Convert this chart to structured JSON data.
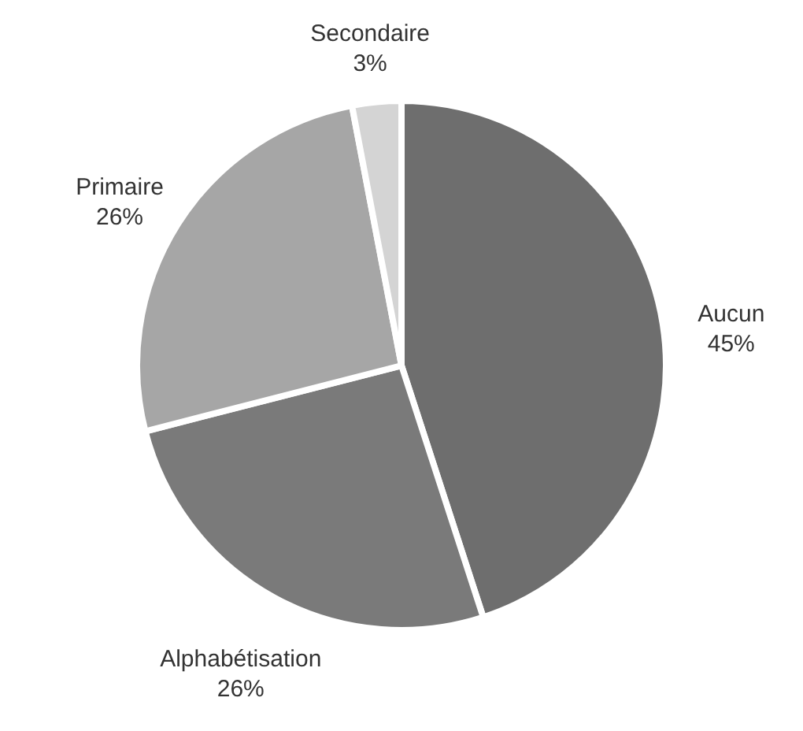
{
  "chart_data": {
    "type": "pie",
    "categories": [
      "Aucun",
      "Alphabétisation",
      "Primaire",
      "Secondaire"
    ],
    "values": [
      45,
      26,
      26,
      3
    ],
    "value_labels": [
      "45%",
      "26%",
      "26%",
      "3%"
    ],
    "colors": [
      "#6e6e6e",
      "#7a7a7a",
      "#a6a6a6",
      "#d4d4d4"
    ]
  }
}
